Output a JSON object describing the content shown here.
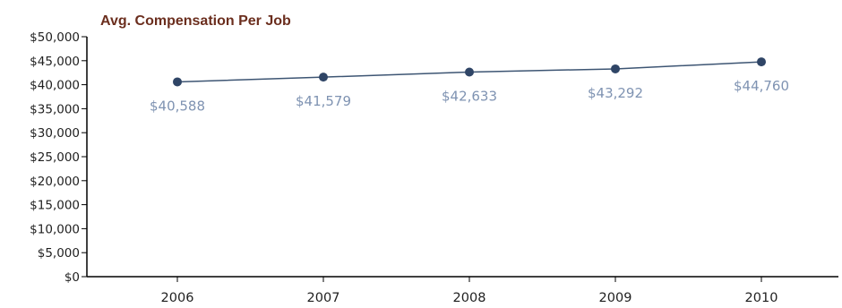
{
  "chart_data": {
    "type": "line",
    "title": "Avg. Compensation Per Job",
    "xlabel": "",
    "ylabel": "",
    "categories": [
      "2006",
      "2007",
      "2008",
      "2009",
      "2010"
    ],
    "values": [
      40588,
      41579,
      42633,
      43292,
      44760
    ],
    "data_labels": [
      "$40,588",
      "$41,579",
      "$42,633",
      "$43,292",
      "$44,760"
    ],
    "yticks": [
      0,
      5000,
      10000,
      15000,
      20000,
      25000,
      30000,
      35000,
      40000,
      45000,
      50000
    ],
    "ytick_labels": [
      "$0",
      "$5,000",
      "$10,000",
      "$15,000",
      "$20,000",
      "$25,000",
      "$30,000",
      "$35,000",
      "$40,000",
      "$45,000",
      "$50,000"
    ],
    "ylim": [
      0,
      50000
    ],
    "grid": false,
    "legend": "none",
    "colors": {
      "line": "#3d5573",
      "marker": "#2f4566",
      "data_label": "#7f93b2",
      "title": "#6b2e1e",
      "axis": "#000000"
    }
  }
}
